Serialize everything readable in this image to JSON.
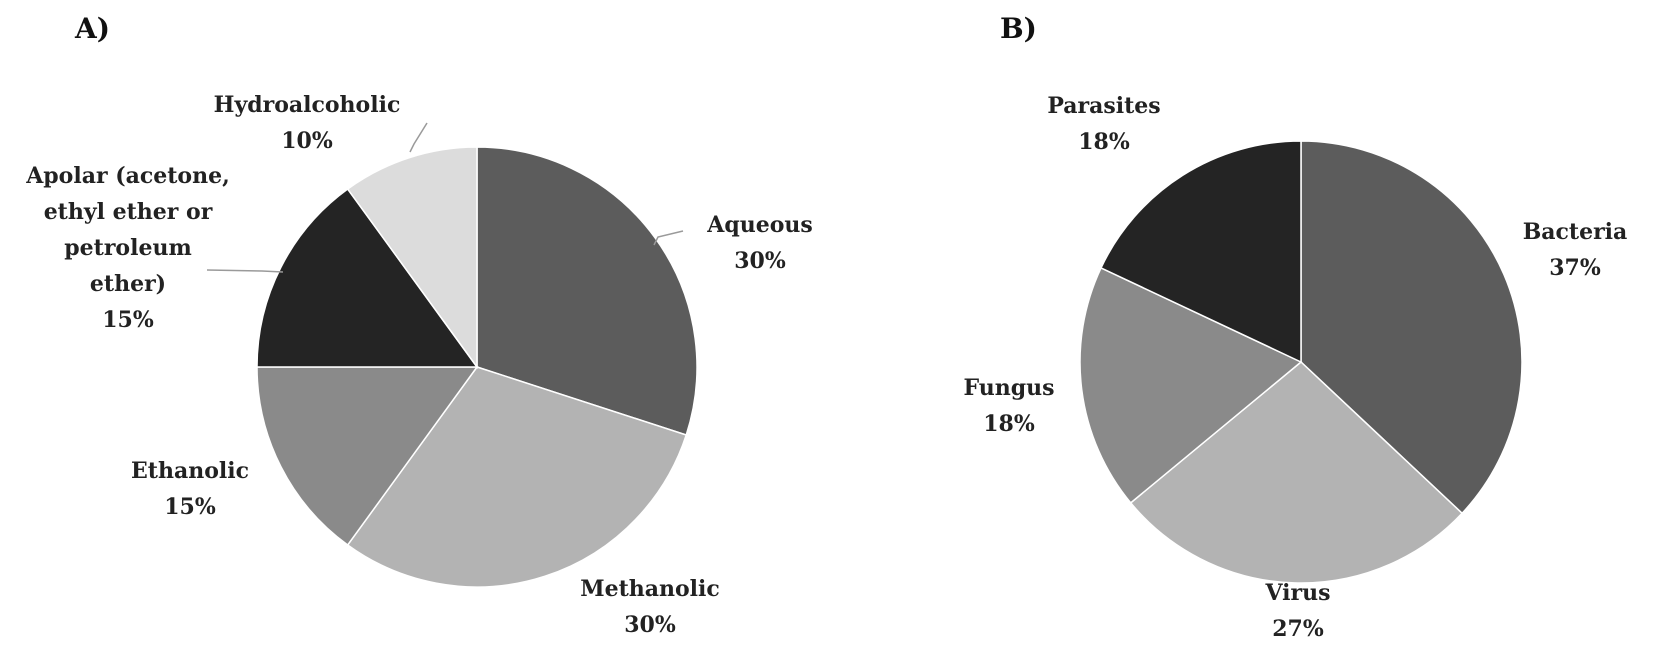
{
  "chart_data": [
    {
      "type": "pie",
      "panel_label": "A)",
      "title": "",
      "slices": [
        {
          "label": "Aqueous",
          "label_lines": [
            "Aqueous"
          ],
          "value": 30,
          "value_label": "30%",
          "color": "#5c5c5c"
        },
        {
          "label": "Methanolic",
          "label_lines": [
            "Methanolic"
          ],
          "value": 30,
          "value_label": "30%",
          "color": "#b3b3b3"
        },
        {
          "label": "Ethanolic",
          "label_lines": [
            "Ethanolic"
          ],
          "value": 15,
          "value_label": "15%",
          "color": "#8a8a8a"
        },
        {
          "label": "Apolar (acetone, ethyl ether or petroleum ether)",
          "label_lines": [
            "Apolar (acetone,",
            "ethyl ether or",
            "petroleum",
            "ether)"
          ],
          "value": 15,
          "value_label": "15%",
          "color": "#242424"
        },
        {
          "label": "Hydroalcoholic",
          "label_lines": [
            "Hydroalcoholic"
          ],
          "value": 10,
          "value_label": "10%",
          "color": "#dcdcdc"
        }
      ],
      "start_angle_deg": 0,
      "direction": "clockwise",
      "legend": "none"
    },
    {
      "type": "pie",
      "panel_label": "B)",
      "title": "",
      "slices": [
        {
          "label": "Bacteria",
          "label_lines": [
            "Bacteria"
          ],
          "value": 37,
          "value_label": "37%",
          "color": "#5c5c5c"
        },
        {
          "label": "Virus",
          "label_lines": [
            "Virus"
          ],
          "value": 27,
          "value_label": "27%",
          "color": "#b3b3b3"
        },
        {
          "label": "Fungus",
          "label_lines": [
            "Fungus"
          ],
          "value": 18,
          "value_label": "18%",
          "color": "#8a8a8a"
        },
        {
          "label": "Parasites",
          "label_lines": [
            "Parasites"
          ],
          "value": 18,
          "value_label": "18%",
          "color": "#242424"
        }
      ],
      "start_angle_deg": 0,
      "direction": "clockwise",
      "legend": "none"
    }
  ]
}
